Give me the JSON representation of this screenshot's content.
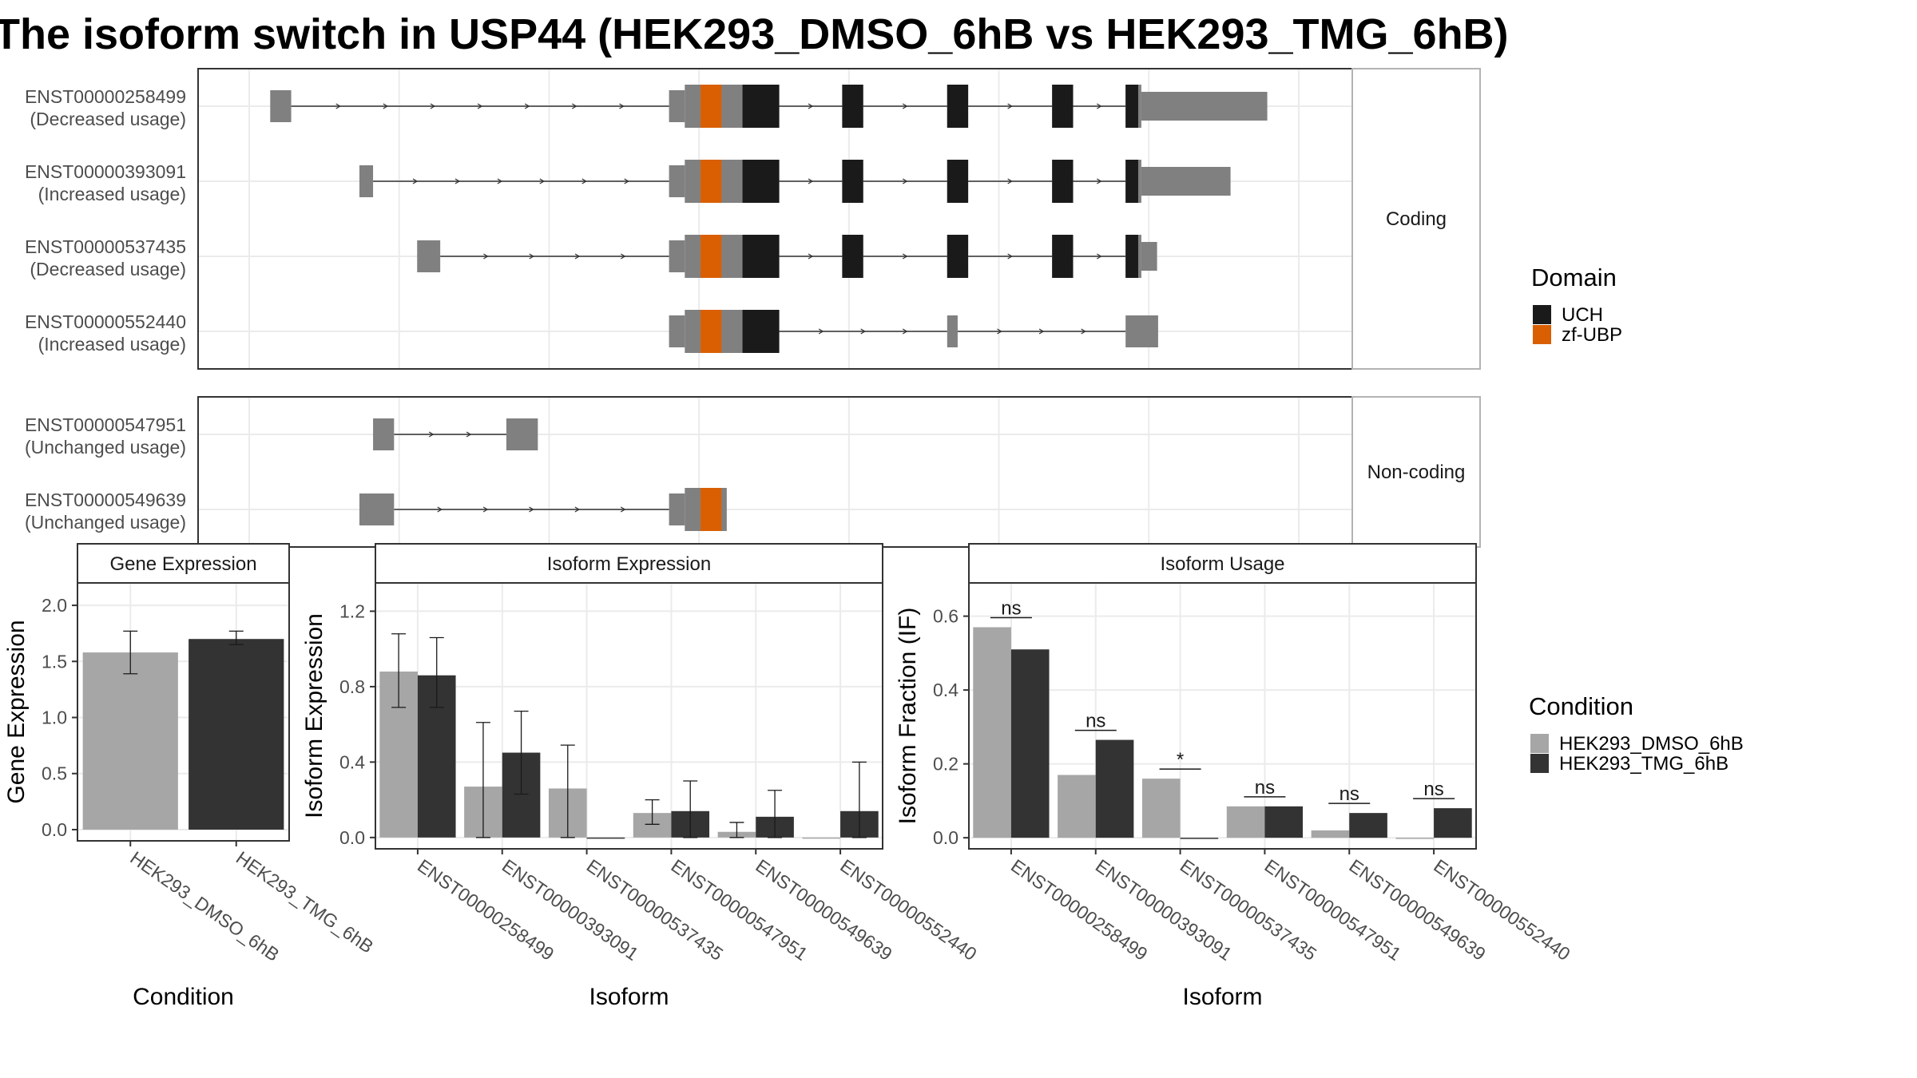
{
  "title": "The isoform switch in USP44 (HEK293_DMSO_6hB vs HEK293_TMG_6hB)",
  "legends": {
    "domain": {
      "title": "Domain",
      "items": [
        {
          "label": "UCH",
          "color": "#1a1a1a"
        },
        {
          "label": "zf-UBP",
          "color": "#d95f02"
        }
      ]
    },
    "condition": {
      "title": "Condition",
      "items": [
        {
          "label": "HEK293_DMSO_6hB",
          "color": "#a6a6a6"
        },
        {
          "label": "HEK293_TMG_6hB",
          "color": "#333333"
        }
      ]
    }
  },
  "colors": {
    "exon": "#808080",
    "intron": "#333333",
    "panel_border": "#333333",
    "strip_border": "#b3b3b3",
    "grid": "#ebebeb"
  },
  "transcripts": {
    "facets": [
      {
        "label": "Coding",
        "rows": [
          {
            "id": "ENST00000258499",
            "status": "(Decreased usage)",
            "exons": [
              [
                0.02,
                0.04,
                "utr"
              ],
              [
                0.4,
                0.415,
                "utr"
              ],
              [
                0.415,
                0.505,
                "cds"
              ],
              [
                0.565,
                0.585,
                "cds"
              ],
              [
                0.665,
                0.685,
                "cds"
              ],
              [
                0.765,
                0.785,
                "cds"
              ],
              [
                0.835,
                0.85,
                "cds"
              ],
              [
                0.85,
                0.97,
                "utr3"
              ]
            ],
            "domains": [
              [
                0.43,
                0.45,
                "zf-UBP"
              ],
              [
                0.47,
                0.505,
                "UCH"
              ],
              [
                0.565,
                0.585,
                "UCH"
              ],
              [
                0.665,
                0.685,
                "UCH"
              ],
              [
                0.765,
                0.785,
                "UCH"
              ],
              [
                0.835,
                0.847,
                "UCH"
              ]
            ]
          },
          {
            "id": "ENST00000393091",
            "status": "(Increased usage)",
            "exons": [
              [
                0.105,
                0.118,
                "utr"
              ],
              [
                0.4,
                0.415,
                "utr"
              ],
              [
                0.415,
                0.505,
                "cds"
              ],
              [
                0.565,
                0.585,
                "cds"
              ],
              [
                0.665,
                0.685,
                "cds"
              ],
              [
                0.765,
                0.785,
                "cds"
              ],
              [
                0.835,
                0.85,
                "cds"
              ],
              [
                0.85,
                0.935,
                "utr3"
              ]
            ],
            "domains": [
              [
                0.43,
                0.45,
                "zf-UBP"
              ],
              [
                0.47,
                0.505,
                "UCH"
              ],
              [
                0.565,
                0.585,
                "UCH"
              ],
              [
                0.665,
                0.685,
                "UCH"
              ],
              [
                0.765,
                0.785,
                "UCH"
              ],
              [
                0.835,
                0.847,
                "UCH"
              ]
            ]
          },
          {
            "id": "ENST00000537435",
            "status": "(Decreased usage)",
            "exons": [
              [
                0.16,
                0.182,
                "utr"
              ],
              [
                0.4,
                0.415,
                "utr"
              ],
              [
                0.415,
                0.505,
                "cds"
              ],
              [
                0.565,
                0.585,
                "cds"
              ],
              [
                0.665,
                0.685,
                "cds"
              ],
              [
                0.765,
                0.785,
                "cds"
              ],
              [
                0.835,
                0.85,
                "cds"
              ],
              [
                0.85,
                0.865,
                "utr3"
              ]
            ],
            "domains": [
              [
                0.43,
                0.45,
                "zf-UBP"
              ],
              [
                0.47,
                0.505,
                "UCH"
              ],
              [
                0.565,
                0.585,
                "UCH"
              ],
              [
                0.665,
                0.685,
                "UCH"
              ],
              [
                0.765,
                0.785,
                "UCH"
              ],
              [
                0.835,
                0.847,
                "UCH"
              ]
            ]
          },
          {
            "id": "ENST00000552440",
            "status": "(Increased usage)",
            "exons": [
              [
                0.4,
                0.415,
                "utr"
              ],
              [
                0.415,
                0.505,
                "cds"
              ],
              [
                0.665,
                0.675,
                "utr"
              ],
              [
                0.835,
                0.866,
                "utr"
              ]
            ],
            "domains": [
              [
                0.43,
                0.45,
                "zf-UBP"
              ],
              [
                0.47,
                0.505,
                "UCH"
              ]
            ]
          }
        ]
      },
      {
        "label": "Non-coding",
        "rows": [
          {
            "id": "ENST00000547951",
            "status": "(Unchanged usage)",
            "exons": [
              [
                0.118,
                0.138,
                "utr"
              ],
              [
                0.245,
                0.275,
                "utr"
              ]
            ],
            "domains": []
          },
          {
            "id": "ENST00000549639",
            "status": "(Unchanged usage)",
            "exons": [
              [
                0.105,
                0.138,
                "utr"
              ],
              [
                0.4,
                0.415,
                "utr"
              ],
              [
                0.415,
                0.455,
                "cds"
              ]
            ],
            "domains": [
              [
                0.43,
                0.45,
                "zf-UBP"
              ]
            ]
          }
        ]
      }
    ]
  },
  "chart_data": [
    {
      "type": "bar",
      "title": "Gene Expression",
      "xlabel": "Condition",
      "ylabel": "Gene Expression",
      "categories": [
        "HEK293_DMSO_6hB",
        "HEK293_TMG_6hB"
      ],
      "values": [
        1.58,
        1.7
      ],
      "errors": [
        [
          1.39,
          1.77
        ],
        [
          1.65,
          1.77
        ]
      ],
      "ylim": [
        -0.1,
        2.2
      ],
      "yticks": [
        "0.0",
        "0.5",
        "1.0",
        "1.5",
        "2.0"
      ]
    },
    {
      "type": "bar",
      "title": "Isoform Expression",
      "xlabel": "Isoform",
      "ylabel": "Isoform Expression",
      "categories": [
        "ENST00000258499",
        "ENST00000393091",
        "ENST00000537435",
        "ENST00000547951",
        "ENST00000549639",
        "ENST00000552440"
      ],
      "series": [
        {
          "name": "HEK293_DMSO_6hB",
          "values": [
            0.88,
            0.27,
            0.26,
            0.13,
            0.03,
            0.0
          ],
          "errors": [
            [
              0.69,
              1.08
            ],
            [
              0.0,
              0.61
            ],
            [
              0.0,
              0.49
            ],
            [
              0.07,
              0.2
            ],
            [
              0.0,
              0.08
            ],
            null
          ]
        },
        {
          "name": "HEK293_TMG_6hB",
          "values": [
            0.86,
            0.45,
            0.0,
            0.14,
            0.11,
            0.14
          ],
          "errors": [
            [
              0.69,
              1.06
            ],
            [
              0.23,
              0.67
            ],
            null,
            [
              0.0,
              0.3
            ],
            [
              0.0,
              0.25
            ],
            [
              0.0,
              0.4
            ]
          ]
        }
      ],
      "ylim": [
        -0.06,
        1.35
      ],
      "yticks": [
        "0.0",
        "0.4",
        "0.8",
        "1.2"
      ]
    },
    {
      "type": "bar",
      "title": "Isoform Usage",
      "xlabel": "Isoform",
      "ylabel": "Isoform Fraction (IF)",
      "categories": [
        "ENST00000258499",
        "ENST00000393091",
        "ENST00000537435",
        "ENST00000547951",
        "ENST00000549639",
        "ENST00000552440"
      ],
      "series": [
        {
          "name": "HEK293_DMSO_6hB",
          "values": [
            0.57,
            0.17,
            0.16,
            0.085,
            0.02,
            0.0
          ]
        },
        {
          "name": "HEK293_TMG_6hB",
          "values": [
            0.51,
            0.265,
            0.0,
            0.085,
            0.067,
            0.08
          ]
        }
      ],
      "significance": [
        "ns",
        "ns",
        "*",
        "ns",
        "ns",
        "ns"
      ],
      "ylim": [
        -0.03,
        0.69
      ],
      "yticks": [
        "0.0",
        "0.2",
        "0.4",
        "0.6"
      ]
    }
  ]
}
